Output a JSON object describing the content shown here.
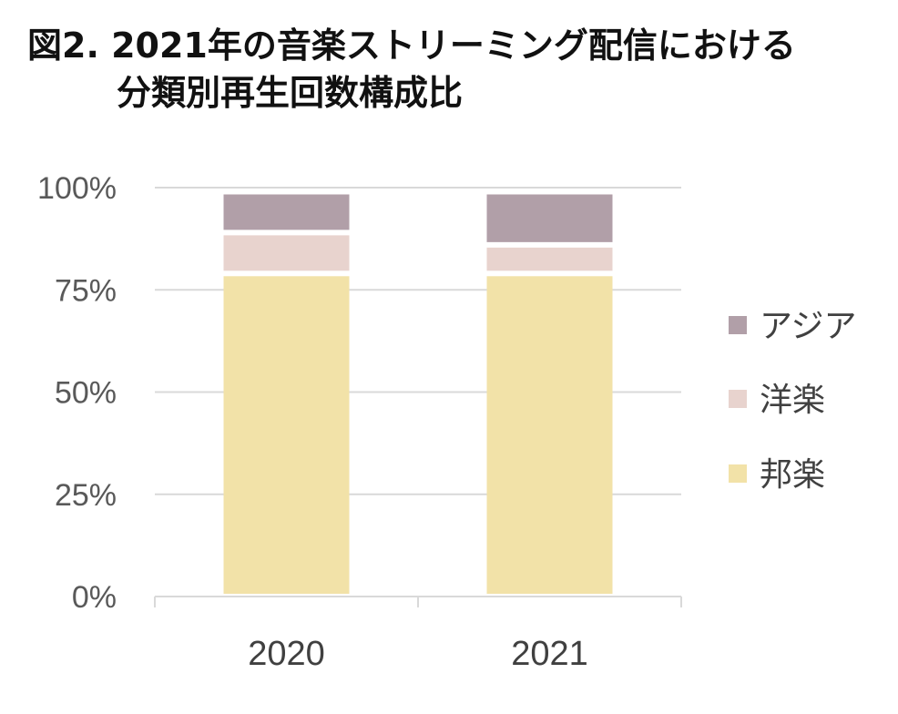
{
  "title": {
    "line1": "図2. 2021年の音楽ストリーミング配信における",
    "line2": "分類別再生回数構成比"
  },
  "chart_data": {
    "type": "bar",
    "stacked": true,
    "categories": [
      "2020",
      "2021"
    ],
    "series": [
      {
        "name": "邦楽",
        "values": [
          79,
          79
        ],
        "color": "#f2e2a8"
      },
      {
        "name": "洋楽",
        "values": [
          10,
          7
        ],
        "color": "#e8d3ce"
      },
      {
        "name": "アジア",
        "values": [
          10,
          13
        ],
        "color": "#b19fa8"
      }
    ],
    "yticks": [
      "0%",
      "25%",
      "50%",
      "75%",
      "100%"
    ],
    "ylim": [
      0,
      100
    ],
    "grid": true,
    "legend_position": "right",
    "legend_order": [
      "アジア",
      "洋楽",
      "邦楽"
    ]
  }
}
